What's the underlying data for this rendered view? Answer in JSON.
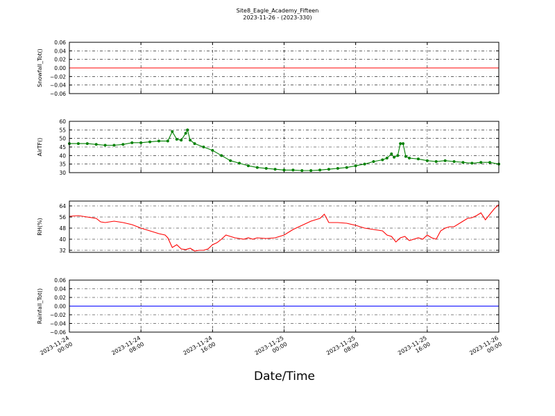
{
  "figure": {
    "title": "Site8_Eagle_Academy_Fifteen",
    "subtitle": "2023-11-26 - (2023-330)",
    "xlabel": "Date/Time",
    "x_ticks": [
      {
        "t": 0,
        "line1": "2023-11-24",
        "line2": "00:00"
      },
      {
        "t": 8,
        "line1": "2023-11-24",
        "line2": "08:00"
      },
      {
        "t": 16,
        "line1": "2023-11-24",
        "line2": "16:00"
      },
      {
        "t": 24,
        "line1": "2023-11-25",
        "line2": "00:00"
      },
      {
        "t": 32,
        "line1": "2023-11-25",
        "line2": "08:00"
      },
      {
        "t": 40,
        "line1": "2023-11-25",
        "line2": "16:00"
      },
      {
        "t": 48,
        "line1": "2023-11-26",
        "line2": "00:00"
      }
    ]
  },
  "chart_data": [
    {
      "type": "line",
      "ylabel": "Snowfall_Tot()",
      "xlim": [
        0,
        48
      ],
      "ylim": [
        -0.06,
        0.06
      ],
      "yticks": [
        -0.06,
        -0.04,
        -0.02,
        0.0,
        0.02,
        0.04,
        0.06
      ],
      "ytick_labels": [
        "−0.06",
        "−0.04",
        "−0.02",
        "0.00",
        "0.02",
        "0.04",
        "0.06"
      ],
      "grid": true,
      "color": "#ff0000",
      "markers": false,
      "x": [
        0,
        48
      ],
      "y": [
        0,
        0
      ]
    },
    {
      "type": "line",
      "ylabel": "AirTF()",
      "xlim": [
        0,
        48
      ],
      "ylim": [
        30,
        60
      ],
      "yticks": [
        30,
        35,
        40,
        45,
        50,
        55,
        60
      ],
      "ytick_labels": [
        "30",
        "35",
        "40",
        "45",
        "50",
        "55",
        "60"
      ],
      "grid": true,
      "color": "#008000",
      "markers": true,
      "x": [
        0,
        1,
        2,
        3,
        4,
        5,
        6,
        7,
        8,
        9,
        10,
        11,
        11.5,
        12,
        12.5,
        13,
        13.2,
        13.5,
        14,
        15,
        16,
        17,
        18,
        19,
        20,
        21,
        22,
        23,
        24,
        25,
        26,
        27,
        28,
        29,
        30,
        31,
        32,
        33,
        34,
        35,
        35.5,
        36,
        36.3,
        36.7,
        37,
        37.3,
        37.6,
        38,
        39,
        40,
        41,
        42,
        43,
        44,
        45,
        46,
        47,
        48
      ],
      "y": [
        47,
        47,
        47,
        46.5,
        46,
        46,
        46.5,
        47.5,
        47.5,
        48,
        48.5,
        48.5,
        54,
        49.5,
        49,
        53,
        55,
        49,
        47,
        45,
        43,
        40,
        37,
        35.5,
        34,
        33,
        32.5,
        32,
        31.5,
        31.5,
        31.2,
        31.2,
        31.5,
        32,
        32.5,
        33,
        34,
        35,
        36.5,
        37.5,
        38.5,
        41,
        39,
        40,
        47,
        47,
        39.5,
        38.5,
        38,
        37,
        36.5,
        37,
        36.5,
        36,
        35.5,
        36,
        36,
        35
      ]
    },
    {
      "type": "line",
      "ylabel": "RH(%)",
      "xlim": [
        0,
        48
      ],
      "ylim": [
        30.5,
        67.5
      ],
      "yticks": [
        32,
        40,
        48,
        56,
        64
      ],
      "ytick_labels": [
        "32",
        "40",
        "48",
        "56",
        "64"
      ],
      "grid": true,
      "color": "#ff0000",
      "markers": false,
      "x": [
        0,
        1,
        2,
        3,
        3.5,
        4,
        5,
        6,
        7,
        8,
        9,
        10,
        10.7,
        11,
        11.5,
        12,
        12.5,
        13,
        13.5,
        14,
        14.5,
        15,
        15.5,
        16,
        16.5,
        17,
        17.5,
        18,
        18.5,
        19,
        19.5,
        20,
        20.5,
        21,
        22,
        23,
        24,
        25,
        26,
        27,
        27.5,
        28,
        28.5,
        29,
        30,
        31,
        32,
        33,
        34,
        35,
        35.5,
        36,
        36.5,
        37,
        37.5,
        38,
        38.5,
        39,
        39.5,
        40,
        40.5,
        41,
        41.5,
        42,
        42.5,
        43,
        44,
        44.5,
        45,
        45.5,
        46,
        46.5,
        47,
        47.5,
        48
      ],
      "y": [
        56.5,
        57,
        56,
        55,
        52.5,
        52,
        53,
        52,
        50.5,
        48,
        46,
        44,
        43,
        41,
        34,
        36,
        33,
        32.5,
        33.5,
        31.5,
        32,
        32,
        33,
        36,
        37.5,
        40,
        43,
        42,
        41,
        40.5,
        40,
        41,
        40,
        41,
        40.5,
        41,
        43,
        47,
        50,
        53,
        54,
        55,
        58,
        52,
        52,
        51.5,
        50,
        48,
        47,
        46,
        43,
        42,
        38,
        41,
        42,
        39,
        40,
        41,
        40,
        43,
        41,
        40,
        46,
        48,
        49,
        49,
        53,
        55,
        55.5,
        57,
        59,
        54,
        58,
        62,
        65
      ]
    },
    {
      "type": "line",
      "ylabel": "Rainfall_Tot()",
      "xlim": [
        0,
        48
      ],
      "ylim": [
        -0.06,
        0.06
      ],
      "yticks": [
        -0.06,
        -0.04,
        -0.02,
        0.0,
        0.02,
        0.04,
        0.06
      ],
      "ytick_labels": [
        "−0.06",
        "−0.04",
        "−0.02",
        "0.00",
        "0.02",
        "0.04",
        "0.06"
      ],
      "grid": true,
      "color": "#0000ff",
      "markers": false,
      "x": [
        0,
        48
      ],
      "y": [
        0,
        0
      ]
    }
  ]
}
